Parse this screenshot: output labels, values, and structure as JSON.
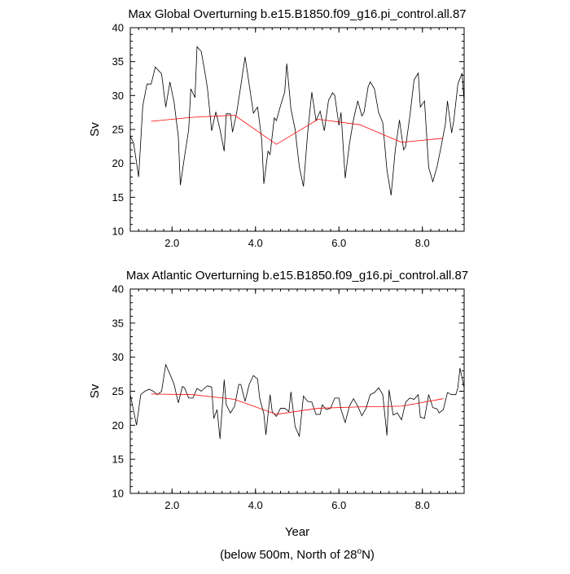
{
  "chart_data": [
    {
      "type": "line",
      "title": "Max Global Overturning b.e15.B1850.f09_g16.pi_control.all.87",
      "y_label": "Sv",
      "xlim": [
        1,
        9
      ],
      "ylim": [
        10,
        40
      ],
      "xticks": [
        {
          "value": 2,
          "label": "2.0"
        },
        {
          "value": 4,
          "label": "4.0"
        },
        {
          "value": 6,
          "label": "6.0"
        },
        {
          "value": 8,
          "label": "8.0"
        }
      ],
      "yticks": [
        10,
        15,
        20,
        25,
        30,
        35,
        40
      ],
      "series": [
        {
          "color": "#000000",
          "x": [
            1.0,
            1.08,
            1.2,
            1.3,
            1.4,
            1.5,
            1.6,
            1.75,
            1.85,
            1.95,
            2.05,
            2.15,
            2.2,
            2.3,
            2.4,
            2.45,
            2.55,
            2.6,
            2.7,
            2.8,
            2.85,
            2.95,
            3.05,
            3.15,
            3.25,
            3.3,
            3.4,
            3.45,
            3.55,
            3.65,
            3.75,
            3.85,
            3.95,
            4.05,
            4.15,
            4.2,
            4.3,
            4.35,
            4.45,
            4.5,
            4.6,
            4.7,
            4.75,
            4.85,
            4.95,
            5.05,
            5.15,
            5.25,
            5.35,
            5.45,
            5.55,
            5.65,
            5.75,
            5.85,
            5.9,
            6.0,
            6.05,
            6.15,
            6.25,
            6.35,
            6.45,
            6.55,
            6.6,
            6.7,
            6.75,
            6.85,
            6.95,
            7.05,
            7.15,
            7.25,
            7.35,
            7.45,
            7.55,
            7.6,
            7.7,
            7.8,
            7.9,
            7.95,
            8.05,
            8.15,
            8.25,
            8.35,
            8.45,
            8.55,
            8.6,
            8.7,
            8.75,
            8.85,
            8.95,
            9.0
          ],
          "values": [
            24,
            23,
            18,
            28.5,
            31.7,
            31.7,
            34.2,
            33.2,
            28.3,
            32,
            29,
            24,
            16.8,
            21,
            25,
            31,
            29.7,
            37.2,
            36.5,
            33,
            31,
            24.8,
            27.6,
            25,
            21.8,
            27.3,
            27.3,
            24.6,
            27.5,
            31.5,
            35.7,
            31.6,
            27.4,
            28.3,
            23.5,
            17,
            21.8,
            21.3,
            26.7,
            26.3,
            28.5,
            30.5,
            34.7,
            28,
            25,
            19.5,
            16.6,
            24.5,
            30.5,
            26.3,
            27.7,
            24.8,
            29.3,
            30.4,
            30,
            25.6,
            27.5,
            17.8,
            22.8,
            26.5,
            29.2,
            27,
            27.5,
            31.3,
            32,
            31,
            27.5,
            26,
            19,
            15.3,
            22,
            26.4,
            22,
            22.5,
            27,
            32.3,
            33.3,
            28.3,
            29.2,
            19.4,
            17.3,
            19.5,
            22.5,
            25.8,
            29.2,
            24.5,
            26.2,
            31.7,
            33.3,
            29
          ]
        },
        {
          "color": "#ff0000",
          "x": [
            1.5,
            2.5,
            3.5,
            4.5,
            5.5,
            6.5,
            7.5,
            8.5
          ],
          "values": [
            26.2,
            26.8,
            27.1,
            22.8,
            26.5,
            25.7,
            23.1,
            23.7
          ]
        }
      ]
    },
    {
      "type": "line",
      "title": "Max Atlantic Overturning b.e15.B1850.f09_g16.pi_control.all.87",
      "y_label": "Sv",
      "x_label": "Year",
      "xlim": [
        1,
        9
      ],
      "ylim": [
        10,
        40
      ],
      "xticks": [
        {
          "value": 2,
          "label": "2.0"
        },
        {
          "value": 4,
          "label": "4.0"
        },
        {
          "value": 6,
          "label": "6.0"
        },
        {
          "value": 8,
          "label": "8.0"
        }
      ],
      "yticks": [
        10,
        15,
        20,
        25,
        30,
        35,
        40
      ],
      "series": [
        {
          "color": "#000000",
          "x": [
            1.0,
            1.1,
            1.15,
            1.25,
            1.35,
            1.45,
            1.55,
            1.65,
            1.75,
            1.85,
            1.95,
            2.05,
            2.15,
            2.25,
            2.3,
            2.4,
            2.5,
            2.6,
            2.7,
            2.75,
            2.85,
            2.95,
            3.0,
            3.08,
            3.15,
            3.25,
            3.3,
            3.4,
            3.5,
            3.6,
            3.65,
            3.75,
            3.85,
            3.95,
            4.05,
            4.1,
            4.2,
            4.25,
            4.35,
            4.4,
            4.5,
            4.6,
            4.7,
            4.8,
            4.85,
            4.95,
            5.05,
            5.15,
            5.25,
            5.35,
            5.45,
            5.55,
            5.6,
            5.7,
            5.8,
            5.9,
            6.0,
            6.05,
            6.15,
            6.25,
            6.35,
            6.45,
            6.55,
            6.65,
            6.75,
            6.85,
            6.95,
            7.05,
            7.15,
            7.2,
            7.3,
            7.4,
            7.5,
            7.6,
            7.7,
            7.8,
            7.9,
            7.95,
            8.05,
            8.15,
            8.25,
            8.35,
            8.4,
            8.5,
            8.6,
            8.7,
            8.8,
            8.85,
            8.9,
            9.0
          ],
          "values": [
            24.5,
            21.5,
            20,
            24.5,
            25,
            25.3,
            25,
            24.5,
            25,
            28.9,
            27.5,
            26,
            23.3,
            25.7,
            25.5,
            24,
            24,
            25.4,
            25,
            25.3,
            25.8,
            25.6,
            21,
            22.3,
            18,
            26.7,
            23,
            21.8,
            22.8,
            26,
            26,
            23.5,
            26,
            27.3,
            26.8,
            24,
            21.7,
            18.6,
            24.5,
            22,
            21.3,
            22.5,
            22.5,
            22,
            24.9,
            19.8,
            18.4,
            24.3,
            23.5,
            23.4,
            21.6,
            21.6,
            23,
            22.3,
            22.5,
            24,
            24,
            22.3,
            20.4,
            22.8,
            23.9,
            22.8,
            21.4,
            22.5,
            24.5,
            24.8,
            25.5,
            24.5,
            18.5,
            25.2,
            21.5,
            21.8,
            20.8,
            23.4,
            24,
            23.8,
            24.5,
            21.2,
            21,
            24.5,
            22.6,
            22.4,
            21.8,
            22.3,
            24.8,
            24.5,
            24.5,
            25.5,
            28.4,
            25.5
          ]
        },
        {
          "color": "#ff0000",
          "x": [
            1.5,
            2.5,
            3.5,
            4.5,
            5.5,
            6.5,
            7.5,
            8.5
          ],
          "values": [
            24.6,
            24.5,
            23.8,
            21.6,
            22.5,
            22.7,
            22.8,
            23.9
          ]
        }
      ]
    }
  ],
  "footer": {
    "text_before": "(below 500m, North of 28",
    "superscript": "o",
    "text_after": "N)"
  }
}
